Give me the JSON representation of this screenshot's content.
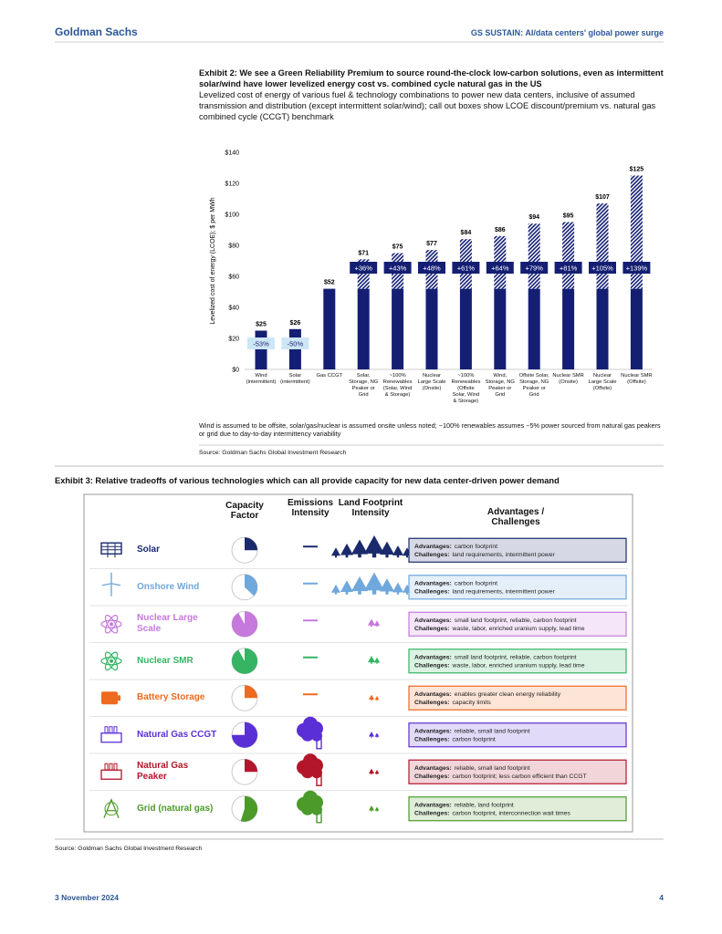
{
  "header": {
    "left": "Goldman Sachs",
    "right": "GS SUSTAIN: AI/data centers' global power surge"
  },
  "exhibit2": {
    "title": "Exhibit 2: We see a Green Reliability Premium to source round-the-clock low-carbon solutions, even as intermittent solar/wind have lower levelized energy cost vs. combined cycle natural gas in the US",
    "subtitle": "Levelized cost of energy of various fuel & technology combinations to power new data centers, inclusive of assumed transmission and distribution (except intermittent solar/wind); call out boxes show LCOE discount/premium vs. natural gas combined cycle (CCGT) benchmark",
    "note": "Wind is assumed to be offsite, solar/gas/nuclear is assumed onsite unless noted; ~100% renewables assumes ~5% power sourced from natural gas peakers or grid due to day-to-day intermittency variability",
    "source": "Source: Goldman Sachs Global Investment Research"
  },
  "chart_data": {
    "type": "bar",
    "ylabel": "Levelized cost of energy (LCOE); $ per MWh",
    "categories": [
      "Wind\n(intermittent)",
      "Solar\n(intermittent)",
      "Gas CCGT",
      "Solar,\nStorage, NG\nPeaker or\nGrid",
      "~100%\nRenewables\n(Solar, Wind\n& Storage)",
      "Nuclear\nLarge Scale\n(Onsite)",
      "~100%\nRenewables\n(Offsite\nSolar, Wind\n& Storage)",
      "Wind,\nStorage, NG\nPeaker or\nGrid",
      "Offsite Solar,\nStorage, NG\nPeaker or\nGrid",
      "Nuclear SMR\n(Onsite)",
      "Nuclear\nLarge Scale\n(Offsite)",
      "Nuclear SMR\n(Offsite)"
    ],
    "values": [
      25,
      26,
      52,
      71,
      75,
      77,
      84,
      86,
      94,
      95,
      107,
      125
    ],
    "value_labels": [
      "$25",
      "$26",
      "$52",
      "$71",
      "$75",
      "$77",
      "$84",
      "$86",
      "$94",
      "$95",
      "$107",
      "$125"
    ],
    "callouts": [
      "-53%",
      "-50%",
      null,
      "+36%",
      "+43%",
      "+48%",
      "+61%",
      "+64%",
      "+79%",
      "+81%",
      "+105%",
      "+139%"
    ],
    "color": "#141f73",
    "ylim": [
      0,
      140
    ],
    "yticks": [
      {
        "value": 0,
        "label": "$0"
      },
      {
        "value": 20,
        "label": "$20"
      },
      {
        "value": 40,
        "label": "$40"
      },
      {
        "value": 60,
        "label": "$60"
      },
      {
        "value": 80,
        "label": "$80"
      },
      {
        "value": 100,
        "label": "$100"
      },
      {
        "value": 120,
        "label": "$120"
      },
      {
        "value": 140,
        "label": "$140"
      }
    ],
    "grid": false
  },
  "exhibit3": {
    "title": "Exhibit 3: Relative tradeoffs of various technologies which can all provide capacity for new data center-driven power demand",
    "columns": [
      "Capacity\nFactor",
      "Emissions\nIntensity",
      "Land Footprint\nIntensity",
      "Advantages / Challenges"
    ],
    "labels": {
      "advantages": "Advantages:",
      "challenges": "Challenges:"
    },
    "rows": [
      {
        "name": "Solar",
        "color": "#1a2a6c",
        "capacity_factor": 25,
        "advantages": "carbon footprint",
        "challenges": "land requirements, intermittent power"
      },
      {
        "name": "Onshore Wind",
        "color": "#6fa8dc",
        "capacity_factor": 37,
        "advantages": "carbon footprint",
        "challenges": "land requirements, intermittent power"
      },
      {
        "name": "Nuclear Large Scale",
        "color": "#c678dd",
        "capacity_factor": 92,
        "advantages": "small land footprint, reliable, carbon footprint",
        "challenges": "waste, labor, enriched uranium supply, lead time"
      },
      {
        "name": "Nuclear SMR",
        "color": "#35b463",
        "capacity_factor": 92,
        "advantages": "small land footprint, reliable, carbon footprint",
        "challenges": "waste, labor, enriched uranium supply, lead time"
      },
      {
        "name": "Battery Storage",
        "color": "#ee6a1f",
        "capacity_factor": 25,
        "advantages": "enables greater clean energy reliability",
        "challenges": "capacity limits"
      },
      {
        "name": "Natural Gas CCGT",
        "color": "#5b2fd6",
        "capacity_factor": 75,
        "advantages": "reliable, small land footprint",
        "challenges": "carbon footprint"
      },
      {
        "name": "Natural Gas Peaker",
        "color": "#b3152a",
        "capacity_factor": 25,
        "advantages": "reliable, small land footprint",
        "challenges": "carbon footprint; less carbon efficient than CCGT"
      },
      {
        "name": "Grid (natural gas)",
        "color": "#4c9a2a",
        "capacity_factor": 55,
        "advantages": "reliable, land footprint",
        "challenges": "carbon footprint, interconnection wait times"
      }
    ],
    "source": "Source: Goldman Sachs Global Investment Research"
  },
  "footer": {
    "date": "3 November 2024",
    "page": "4"
  }
}
